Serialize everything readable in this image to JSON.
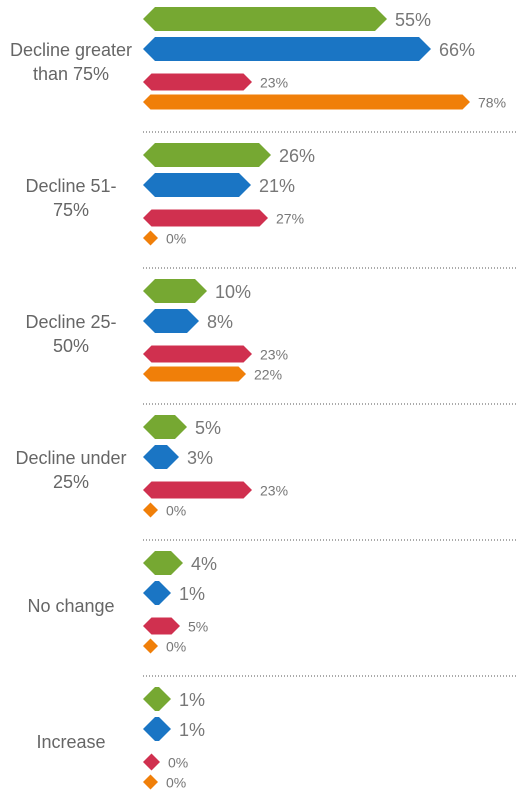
{
  "chart_data": {
    "type": "bar",
    "categories": [
      "Decline greater than 75%",
      "Decline 51-75%",
      "Decline 25-50%",
      "Decline under 25%",
      "No change",
      "Increase"
    ],
    "series": [
      {
        "color": "#76a832",
        "values": [
          55,
          26,
          10,
          5,
          4,
          1
        ],
        "value_labels": [
          "55%",
          "26%",
          "10%",
          "5%",
          "4%",
          "1%"
        ]
      },
      {
        "color": "#1a75c4",
        "values": [
          66,
          21,
          8,
          3,
          1,
          1
        ],
        "value_labels": [
          "66%",
          "21%",
          "8%",
          "3%",
          "1%",
          "1%"
        ]
      },
      {
        "color": "#d0304f",
        "values": [
          23,
          27,
          23,
          23,
          5,
          0
        ],
        "value_labels": [
          "23%",
          "27%",
          "23%",
          "23%",
          "5%",
          "0%"
        ]
      },
      {
        "color": "#f07f09",
        "values": [
          78,
          0,
          22,
          0,
          0,
          0
        ],
        "value_labels": [
          "78%",
          "0%",
          "22%",
          "0%",
          "0%",
          "0%"
        ]
      }
    ]
  }
}
